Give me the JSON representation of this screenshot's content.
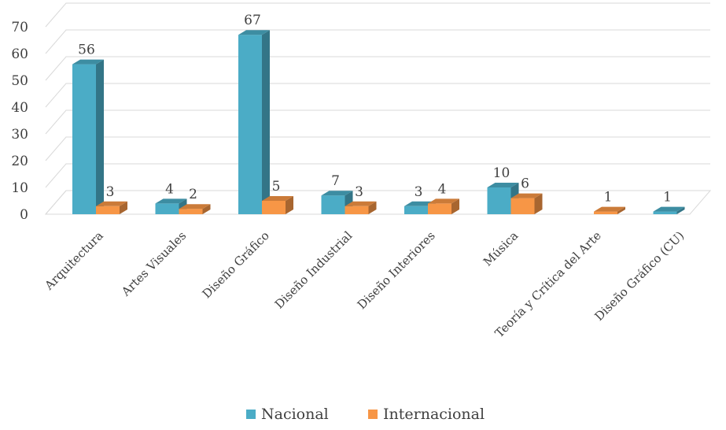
{
  "chart_data": {
    "type": "bar",
    "title": "",
    "xlabel": "",
    "ylabel": "",
    "ylim": [
      0,
      70
    ],
    "yticks": [
      0,
      10,
      20,
      30,
      40,
      50,
      60,
      70
    ],
    "grid": true,
    "legend_position": "bottom",
    "categories": [
      "Arquitectura",
      "Artes Visuales",
      "Diseño Gráfico",
      "Diseño Industrial",
      "Diseño Interiores",
      "Música",
      "Teoría y Crítica del Arte",
      "Diseño Gráfico (CU)"
    ],
    "series": [
      {
        "name": "Nacional",
        "color": "#4BACC6",
        "values": [
          56,
          4,
          67,
          7,
          3,
          10,
          0,
          1
        ],
        "labels": [
          "56",
          "4",
          "67",
          "7",
          "3",
          "10",
          "",
          "1"
        ]
      },
      {
        "name": "Internacional",
        "color": "#F79646",
        "values": [
          3,
          2,
          5,
          3,
          4,
          6,
          1,
          0
        ],
        "labels": [
          "3",
          "2",
          "5",
          "3",
          "4",
          "6",
          "1",
          ""
        ]
      }
    ]
  }
}
